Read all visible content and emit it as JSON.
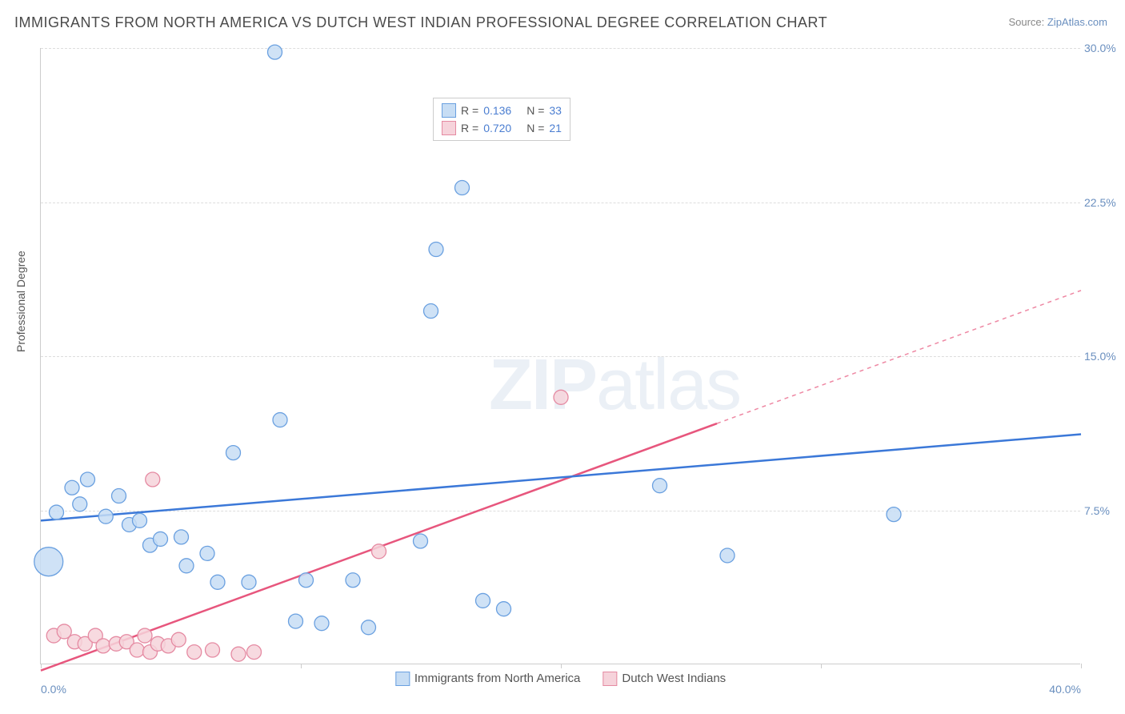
{
  "title": "IMMIGRANTS FROM NORTH AMERICA VS DUTCH WEST INDIAN PROFESSIONAL DEGREE CORRELATION CHART",
  "source_prefix": "Source: ",
  "source_name": "ZipAtlas.com",
  "y_axis_label": "Professional Degree",
  "watermark_bold": "ZIP",
  "watermark_light": "atlas",
  "chart": {
    "type": "scatter",
    "xlim": [
      0,
      40
    ],
    "ylim": [
      0,
      30
    ],
    "x_ticks": [
      0,
      10,
      20,
      30,
      40
    ],
    "x_tick_labels": [
      "0.0%",
      "",
      "",
      "",
      "40.0%"
    ],
    "y_ticks": [
      7.5,
      15.0,
      22.5,
      30.0
    ],
    "y_tick_labels": [
      "7.5%",
      "15.0%",
      "22.5%",
      "30.0%"
    ],
    "background_color": "#ffffff",
    "grid_color": "#dddddd",
    "axis_color": "#cccccc",
    "tick_label_color": "#6a8fbf",
    "series": [
      {
        "id": "immigrants_na",
        "label": "Immigrants from North America",
        "marker_fill": "#c7ddf4",
        "marker_stroke": "#6aa0e0",
        "marker_radius": 9,
        "line_color": "#3b78d8",
        "line_width": 2.5,
        "R": "0.136",
        "N": "33",
        "regression": {
          "x1": 0,
          "y1": 7.0,
          "x2": 40,
          "y2": 11.2,
          "solid_until_x": 40
        },
        "points": [
          {
            "x": 0.3,
            "y": 5.0,
            "r": 18
          },
          {
            "x": 0.6,
            "y": 7.4
          },
          {
            "x": 1.2,
            "y": 8.6
          },
          {
            "x": 1.5,
            "y": 7.8
          },
          {
            "x": 1.8,
            "y": 9.0
          },
          {
            "x": 2.5,
            "y": 7.2
          },
          {
            "x": 3.0,
            "y": 8.2
          },
          {
            "x": 3.4,
            "y": 6.8
          },
          {
            "x": 3.8,
            "y": 7.0
          },
          {
            "x": 4.2,
            "y": 5.8
          },
          {
            "x": 4.6,
            "y": 6.1
          },
          {
            "x": 5.4,
            "y": 6.2
          },
          {
            "x": 5.6,
            "y": 4.8
          },
          {
            "x": 6.4,
            "y": 5.4
          },
          {
            "x": 6.8,
            "y": 4.0
          },
          {
            "x": 7.4,
            "y": 10.3
          },
          {
            "x": 8.0,
            "y": 4.0
          },
          {
            "x": 9.0,
            "y": 29.8
          },
          {
            "x": 9.2,
            "y": 11.9
          },
          {
            "x": 9.8,
            "y": 2.1
          },
          {
            "x": 10.2,
            "y": 4.1
          },
          {
            "x": 10.8,
            "y": 2.0
          },
          {
            "x": 12.0,
            "y": 4.1
          },
          {
            "x": 12.6,
            "y": 1.8
          },
          {
            "x": 14.6,
            "y": 6.0
          },
          {
            "x": 15.0,
            "y": 17.2
          },
          {
            "x": 15.2,
            "y": 20.2
          },
          {
            "x": 16.2,
            "y": 23.2
          },
          {
            "x": 17.0,
            "y": 3.1
          },
          {
            "x": 17.8,
            "y": 2.7
          },
          {
            "x": 23.8,
            "y": 8.7
          },
          {
            "x": 26.4,
            "y": 5.3
          },
          {
            "x": 32.8,
            "y": 7.3
          }
        ]
      },
      {
        "id": "dutch_wi",
        "label": "Dutch West Indians",
        "marker_fill": "#f6d3db",
        "marker_stroke": "#e58aa2",
        "marker_radius": 9,
        "line_color": "#e7567d",
        "line_width": 2.5,
        "R": "0.720",
        "N": "21",
        "regression": {
          "x1": 0,
          "y1": -0.3,
          "x2": 40,
          "y2": 18.2,
          "solid_until_x": 26
        },
        "points": [
          {
            "x": 0.5,
            "y": 1.4
          },
          {
            "x": 0.9,
            "y": 1.6
          },
          {
            "x": 1.3,
            "y": 1.1
          },
          {
            "x": 1.7,
            "y": 1.0
          },
          {
            "x": 2.1,
            "y": 1.4
          },
          {
            "x": 2.4,
            "y": 0.9
          },
          {
            "x": 2.9,
            "y": 1.0
          },
          {
            "x": 3.3,
            "y": 1.1
          },
          {
            "x": 3.7,
            "y": 0.7
          },
          {
            "x": 4.0,
            "y": 1.4
          },
          {
            "x": 4.2,
            "y": 0.6
          },
          {
            "x": 4.3,
            "y": 9.0
          },
          {
            "x": 4.5,
            "y": 1.0
          },
          {
            "x": 4.9,
            "y": 0.9
          },
          {
            "x": 5.3,
            "y": 1.2
          },
          {
            "x": 5.9,
            "y": 0.6
          },
          {
            "x": 6.6,
            "y": 0.7
          },
          {
            "x": 7.6,
            "y": 0.5
          },
          {
            "x": 8.2,
            "y": 0.6
          },
          {
            "x": 13.0,
            "y": 5.5
          },
          {
            "x": 20.0,
            "y": 13.0
          }
        ]
      }
    ],
    "legend_top": {
      "R_label": "R  =",
      "N_label": "N  ="
    }
  }
}
